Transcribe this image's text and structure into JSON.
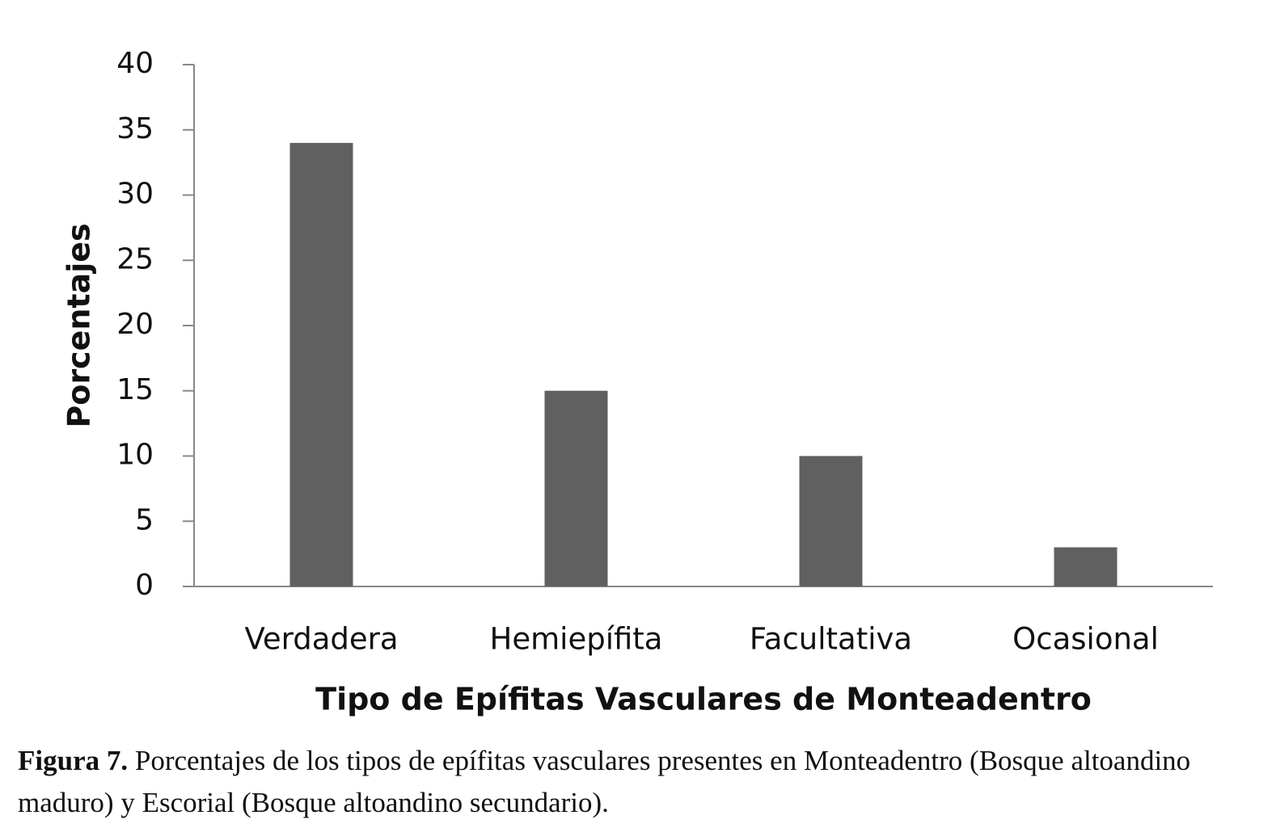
{
  "chart_data": {
    "type": "bar",
    "x_label": "Tipo de Epífitas Vasculares de Monteadentro",
    "y_label": "Porcentajes",
    "categories": [
      "Verdadera",
      "Hemiepífita",
      "Facultativa",
      "Ocasional"
    ],
    "values": [
      34,
      15,
      10,
      3
    ],
    "color": "#606060",
    "ylim": [
      0,
      40
    ],
    "yticks": [
      0,
      5,
      10,
      15,
      20,
      25,
      30,
      35,
      40
    ],
    "grid": false
  },
  "caption": {
    "label": "Figura 7.",
    "text": "Porcentajes de los tipos de epífitas vasculares presentes en Monteadentro (Bosque altoandino maduro) y Escorial (Bosque altoandino secundario)."
  }
}
